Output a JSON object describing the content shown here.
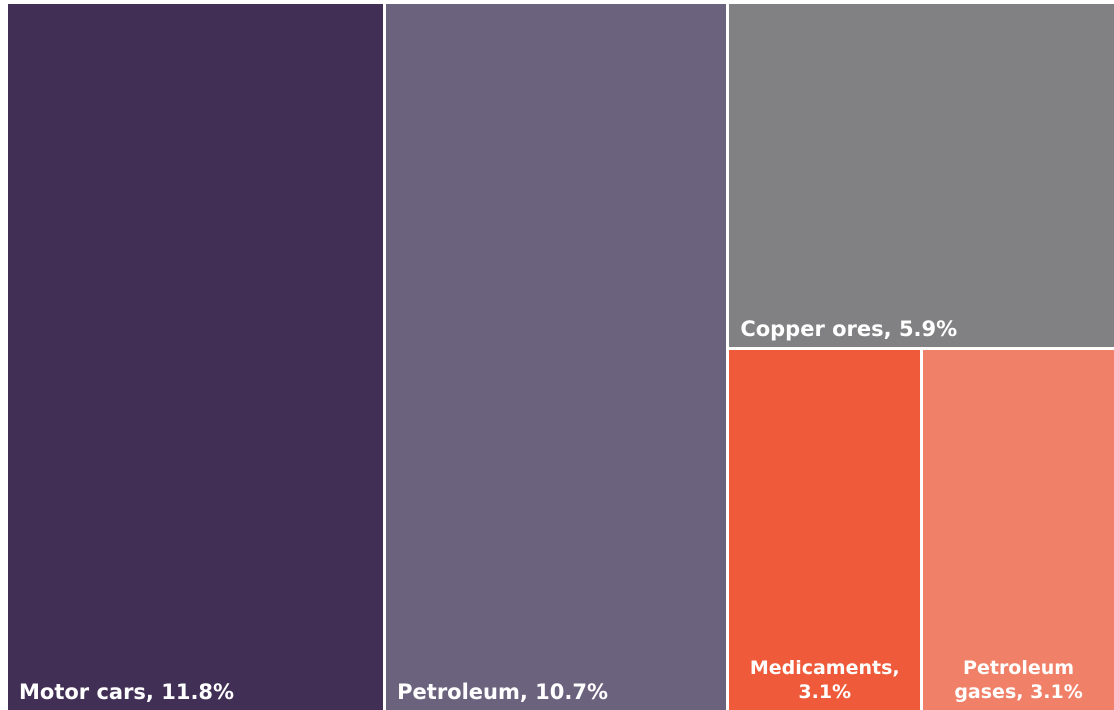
{
  "chart_data": {
    "type": "treemap",
    "title": "",
    "items": [
      {
        "label": "Motor cars, 11.8%",
        "name": "Motor cars",
        "value": 11.8,
        "color": "#412f55"
      },
      {
        "label": "Petroleum, 10.7%",
        "name": "Petroleum",
        "value": 10.7,
        "color": "#6b627d"
      },
      {
        "label": "Copper ores, 5.9%",
        "name": "Copper ores",
        "value": 5.9,
        "color": "#818082"
      },
      {
        "label": "Medicaments,\n3.1%",
        "name": "Medicaments",
        "value": 3.1,
        "color": "#ef5a3a"
      },
      {
        "label": "Petroleum\ngases, 3.1%",
        "name": "Petroleum gases",
        "value": 3.1,
        "color": "#f08068"
      }
    ]
  }
}
